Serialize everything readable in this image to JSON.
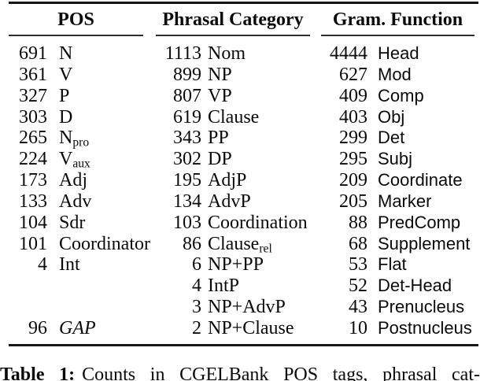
{
  "table": {
    "columns": [
      {
        "header": "POS",
        "rows": [
          {
            "num": "691",
            "label": "N",
            "sub": ""
          },
          {
            "num": "361",
            "label": "V",
            "sub": ""
          },
          {
            "num": "327",
            "label": "P",
            "sub": ""
          },
          {
            "num": "303",
            "label": "D",
            "sub": ""
          },
          {
            "num": "265",
            "label": "N",
            "sub": "pro"
          },
          {
            "num": "224",
            "label": "V",
            "sub": "aux"
          },
          {
            "num": "173",
            "label": "Adj",
            "sub": ""
          },
          {
            "num": "133",
            "label": "Adv",
            "sub": ""
          },
          {
            "num": "104",
            "label": "Sdr",
            "sub": ""
          },
          {
            "num": "101",
            "label": "Coordinator",
            "sub": ""
          },
          {
            "num": "4",
            "label": "Int",
            "sub": ""
          },
          {
            "num": "",
            "label": "",
            "sub": ""
          },
          {
            "num": "",
            "label": "",
            "sub": ""
          },
          {
            "num": "96",
            "label": "GAP",
            "sub": "",
            "italic": true
          }
        ]
      },
      {
        "header": "Phrasal Category",
        "rows": [
          {
            "num": "1113",
            "label": "Nom",
            "sub": ""
          },
          {
            "num": "899",
            "label": "NP",
            "sub": ""
          },
          {
            "num": "807",
            "label": "VP",
            "sub": ""
          },
          {
            "num": "619",
            "label": "Clause",
            "sub": ""
          },
          {
            "num": "343",
            "label": "PP",
            "sub": ""
          },
          {
            "num": "302",
            "label": "DP",
            "sub": ""
          },
          {
            "num": "195",
            "label": "AdjP",
            "sub": ""
          },
          {
            "num": "134",
            "label": "AdvP",
            "sub": ""
          },
          {
            "num": "103",
            "label": "Coordination",
            "sub": ""
          },
          {
            "num": "86",
            "label": "Clause",
            "sub": "rel"
          },
          {
            "num": "6",
            "label": "NP+PP",
            "sub": ""
          },
          {
            "num": "4",
            "label": "IntP",
            "sub": ""
          },
          {
            "num": "3",
            "label": "NP+AdvP",
            "sub": ""
          },
          {
            "num": "2",
            "label": "NP+Clause",
            "sub": ""
          }
        ]
      },
      {
        "header": "Gram. Function",
        "rows": [
          {
            "num": "4444",
            "label": "Head",
            "sub": ""
          },
          {
            "num": "627",
            "label": "Mod",
            "sub": ""
          },
          {
            "num": "409",
            "label": "Comp",
            "sub": ""
          },
          {
            "num": "403",
            "label": "Obj",
            "sub": ""
          },
          {
            "num": "299",
            "label": "Det",
            "sub": ""
          },
          {
            "num": "295",
            "label": "Subj",
            "sub": ""
          },
          {
            "num": "209",
            "label": "Coordinate",
            "sub": ""
          },
          {
            "num": "205",
            "label": "Marker",
            "sub": ""
          },
          {
            "num": "88",
            "label": "PredComp",
            "sub": ""
          },
          {
            "num": "68",
            "label": "Supplement",
            "sub": ""
          },
          {
            "num": "53",
            "label": "Flat",
            "sub": ""
          },
          {
            "num": "52",
            "label": "Det-Head",
            "sub": ""
          },
          {
            "num": "43",
            "label": "Prenucleus",
            "sub": ""
          },
          {
            "num": "10",
            "label": "Postnucleus",
            "sub": ""
          }
        ]
      }
    ]
  },
  "caption": {
    "label": "Table 1:",
    "text": "Counts in CGELBank POS tags, phrasal cat-"
  },
  "colors": {
    "text": "#0a0a0a",
    "rule": "#161616",
    "background": "#ffffff"
  }
}
